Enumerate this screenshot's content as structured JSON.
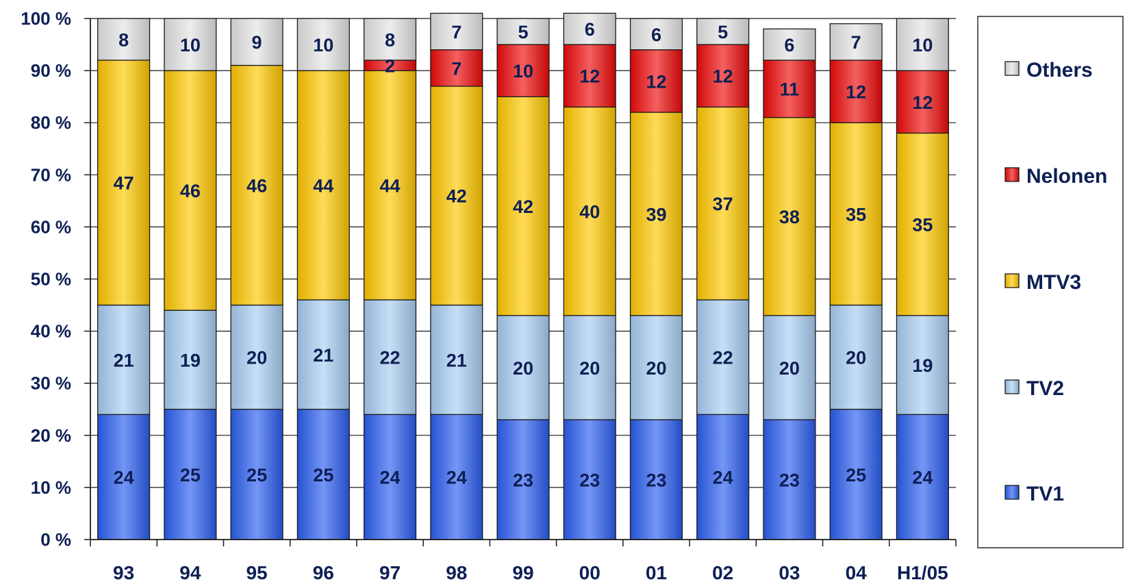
{
  "chart_data": {
    "type": "bar",
    "stacked": true,
    "percent_scale": true,
    "categories": [
      "93",
      "94",
      "95",
      "96",
      "97",
      "98",
      "99",
      "00",
      "01",
      "02",
      "03",
      "04",
      "H1/05"
    ],
    "y_tick_labels": [
      "0 %",
      "10 %",
      "20 %",
      "30 %",
      "40 %",
      "50 %",
      "60 %",
      "70 %",
      "80 %",
      "90 %",
      "100 %"
    ],
    "ylim": [
      0,
      100
    ],
    "grid": true,
    "legend_position": "right",
    "series": [
      {
        "name": "TV1",
        "color": "#2b5ef0",
        "values": [
          24,
          25,
          25,
          25,
          24,
          24,
          23,
          23,
          23,
          24,
          23,
          25,
          24
        ]
      },
      {
        "name": "TV2",
        "color": "#a8cdf2",
        "values": [
          21,
          19,
          20,
          21,
          22,
          21,
          20,
          20,
          20,
          22,
          20,
          20,
          19
        ]
      },
      {
        "name": "MTV3",
        "color": "#ffc800",
        "values": [
          47,
          46,
          46,
          44,
          44,
          42,
          42,
          40,
          39,
          37,
          38,
          35,
          35
        ]
      },
      {
        "name": "Nelonen",
        "color": "#ee0a0a",
        "values": [
          0,
          0,
          0,
          0,
          2,
          7,
          10,
          12,
          12,
          12,
          11,
          12,
          12
        ]
      },
      {
        "name": "Others",
        "color": "#e4e4e4",
        "values": [
          8,
          10,
          9,
          10,
          8,
          7,
          5,
          6,
          6,
          5,
          6,
          7,
          10
        ]
      }
    ]
  }
}
